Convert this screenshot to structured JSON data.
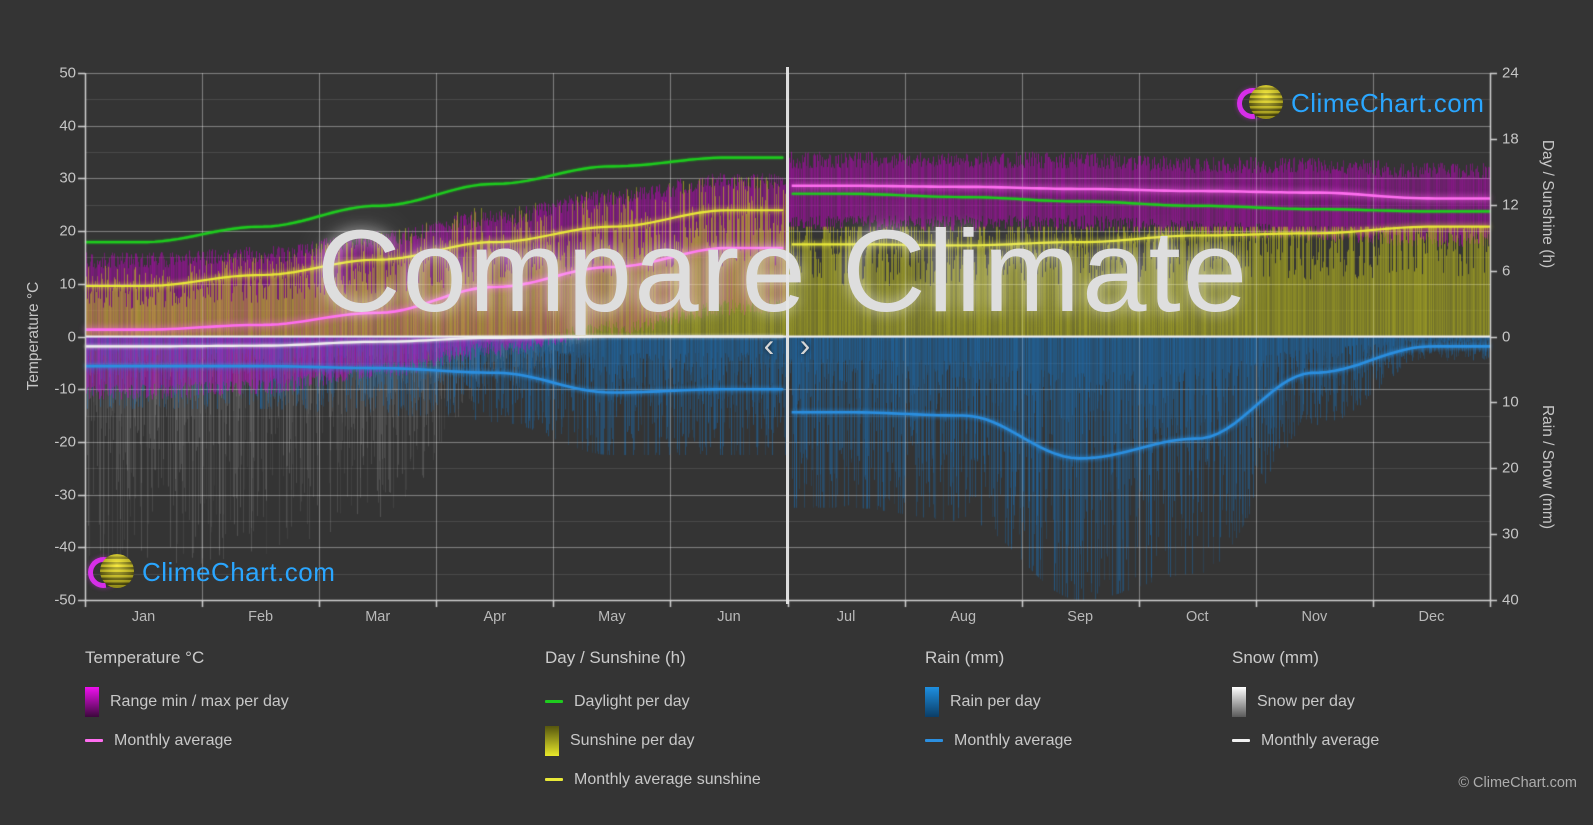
{
  "watermark": {
    "text": "Compare Climate"
  },
  "nav": {
    "prev": "‹",
    "next": "›"
  },
  "branding": {
    "logo_text": "ClimeChart.com",
    "copyright": "© ClimeChart.com"
  },
  "axes": {
    "left": {
      "title": "Temperature °C",
      "range": [
        -50,
        50
      ],
      "ticks": [
        50,
        40,
        30,
        20,
        10,
        0,
        -10,
        -20,
        -30,
        -40,
        -50
      ]
    },
    "right_top": {
      "title": "Day / Sunshine (h)",
      "range": [
        0,
        24
      ],
      "ticks": [
        24,
        18,
        12,
        6,
        0
      ]
    },
    "right_bottom": {
      "title": "Rain / Snow (mm)",
      "range": [
        0,
        40
      ],
      "ticks": [
        10,
        20,
        30,
        40
      ]
    },
    "x": {
      "months": [
        "Jan",
        "Feb",
        "Mar",
        "Apr",
        "May",
        "Jun",
        "Jul",
        "Aug",
        "Sep",
        "Oct",
        "Nov",
        "Dec"
      ]
    }
  },
  "legend": {
    "columns": [
      {
        "heading": "Temperature °C",
        "items": [
          {
            "swatch": "gradient",
            "colors": [
              "#f010f0",
              "#3c083c"
            ],
            "label": "Range min / max per day"
          },
          {
            "swatch": "line",
            "color": "#ff6ef0",
            "label": "Monthly average"
          }
        ]
      },
      {
        "heading": "Day / Sunshine (h)",
        "items": [
          {
            "swatch": "line",
            "color": "#1ecc1e",
            "label": "Daylight per day"
          },
          {
            "swatch": "gradient",
            "colors": [
              "#55550e",
              "#e8e82a"
            ],
            "label": "Sunshine per day"
          },
          {
            "swatch": "line",
            "color": "#e8e838",
            "label": "Monthly average sunshine"
          }
        ]
      },
      {
        "heading": "Rain (mm)",
        "items": [
          {
            "swatch": "gradient",
            "colors": [
              "#1e8fe0",
              "#0b3d66"
            ],
            "label": "Rain per day"
          },
          {
            "swatch": "line",
            "color": "#2b8fe0",
            "label": "Monthly average"
          }
        ]
      },
      {
        "heading": "Snow (mm)",
        "items": [
          {
            "swatch": "gradient",
            "colors": [
              "#ffffff",
              "#5a5a5a"
            ],
            "label": "Snow per day"
          },
          {
            "swatch": "line",
            "color": "#f0f0f0",
            "label": "Monthly average"
          }
        ]
      }
    ]
  },
  "chart_data": {
    "type": "area",
    "description": "Climate comparison chart; vertical slider at July 1 splits two compared locations (left half Jan–Jun, right half Jul–Dec).",
    "months": [
      "Jan",
      "Feb",
      "Mar",
      "Apr",
      "May",
      "Jun",
      "Jul",
      "Aug",
      "Sep",
      "Oct",
      "Nov",
      "Dec"
    ],
    "divider_position_year_fraction": 0.5,
    "axis_ranges": {
      "temperature_c": [
        -50,
        50
      ],
      "day_sunshine_h": [
        0,
        24
      ],
      "rain_snow_mm": [
        0,
        40
      ]
    },
    "grid": "on",
    "legend_position": "bottom",
    "series": [
      {
        "name": "Daylight per day",
        "type": "line",
        "unit": "h",
        "color": "#1ecc1e",
        "monthly": [
          8.6,
          10.0,
          11.9,
          13.9,
          15.5,
          16.3,
          13.0,
          12.7,
          12.3,
          11.9,
          11.6,
          11.4
        ]
      },
      {
        "name": "Monthly average sunshine",
        "type": "line",
        "unit": "h",
        "color": "#e8e838",
        "monthly": [
          4.6,
          5.6,
          7.0,
          8.6,
          10.0,
          11.5,
          8.4,
          8.3,
          8.6,
          9.2,
          9.4,
          10.0
        ]
      },
      {
        "name": "Monthly average temperature",
        "type": "line",
        "unit": "°C",
        "color": "#ff6ef0",
        "monthly": [
          1.3,
          2.2,
          4.5,
          9.4,
          13.2,
          16.8,
          28.6,
          28.4,
          28.0,
          27.6,
          27.3,
          26.2
        ]
      },
      {
        "name": "Monthly average rain",
        "type": "line",
        "unit": "mm",
        "color": "#2b8fe0",
        "monthly": [
          4.5,
          4.5,
          4.8,
          5.5,
          8.5,
          8.0,
          11.5,
          12.0,
          18.5,
          15.5,
          5.5,
          1.5
        ]
      },
      {
        "name": "Monthly average snow",
        "type": "line",
        "unit": "mm",
        "color": "#f0f0f0",
        "half": "left-only",
        "monthly": [
          1.5,
          1.4,
          0.8,
          0.2,
          0,
          0,
          0,
          0,
          0,
          0,
          0,
          0
        ]
      },
      {
        "name": "Range min / max per day",
        "type": "bars",
        "unit": "°C",
        "color": "#cc00cc",
        "monthly_min": [
          -9,
          -8,
          -5,
          -1,
          3,
          7,
          23,
          23,
          23,
          22,
          21,
          20
        ],
        "monthly_max": [
          14,
          15,
          18,
          22,
          26,
          29,
          33,
          33,
          33,
          32,
          32,
          31
        ]
      },
      {
        "name": "Sunshine per day",
        "type": "bars",
        "unit": "h",
        "color": "#c8c81e",
        "monthly_max": [
          7,
          8.5,
          10,
          12,
          13.5,
          14.5,
          10,
          10,
          10,
          10,
          10,
          10
        ]
      },
      {
        "name": "Rain per day",
        "type": "bars",
        "unit": "mm",
        "color": "#1878c8",
        "monthly_max": [
          11,
          11,
          12,
          13,
          18,
          18,
          26,
          28,
          40,
          36,
          14,
          5
        ]
      },
      {
        "name": "Snow per day",
        "type": "bars",
        "unit": "mm",
        "color": "#b4b4b4",
        "monthly_max": [
          36,
          34,
          28,
          8,
          0,
          0,
          0,
          0,
          0,
          0,
          0,
          0
        ]
      }
    ]
  },
  "theme": {
    "background": "#343434",
    "axis_text": "#c6c6c6",
    "zero_line": "#f2f2f2",
    "divider": "#e6e6e6",
    "watermark_color": "#dedede",
    "logo_text_color": "#2aa6ff",
    "logo_ring_color": "#d62ee8",
    "logo_ball_color": "#eedf26"
  }
}
